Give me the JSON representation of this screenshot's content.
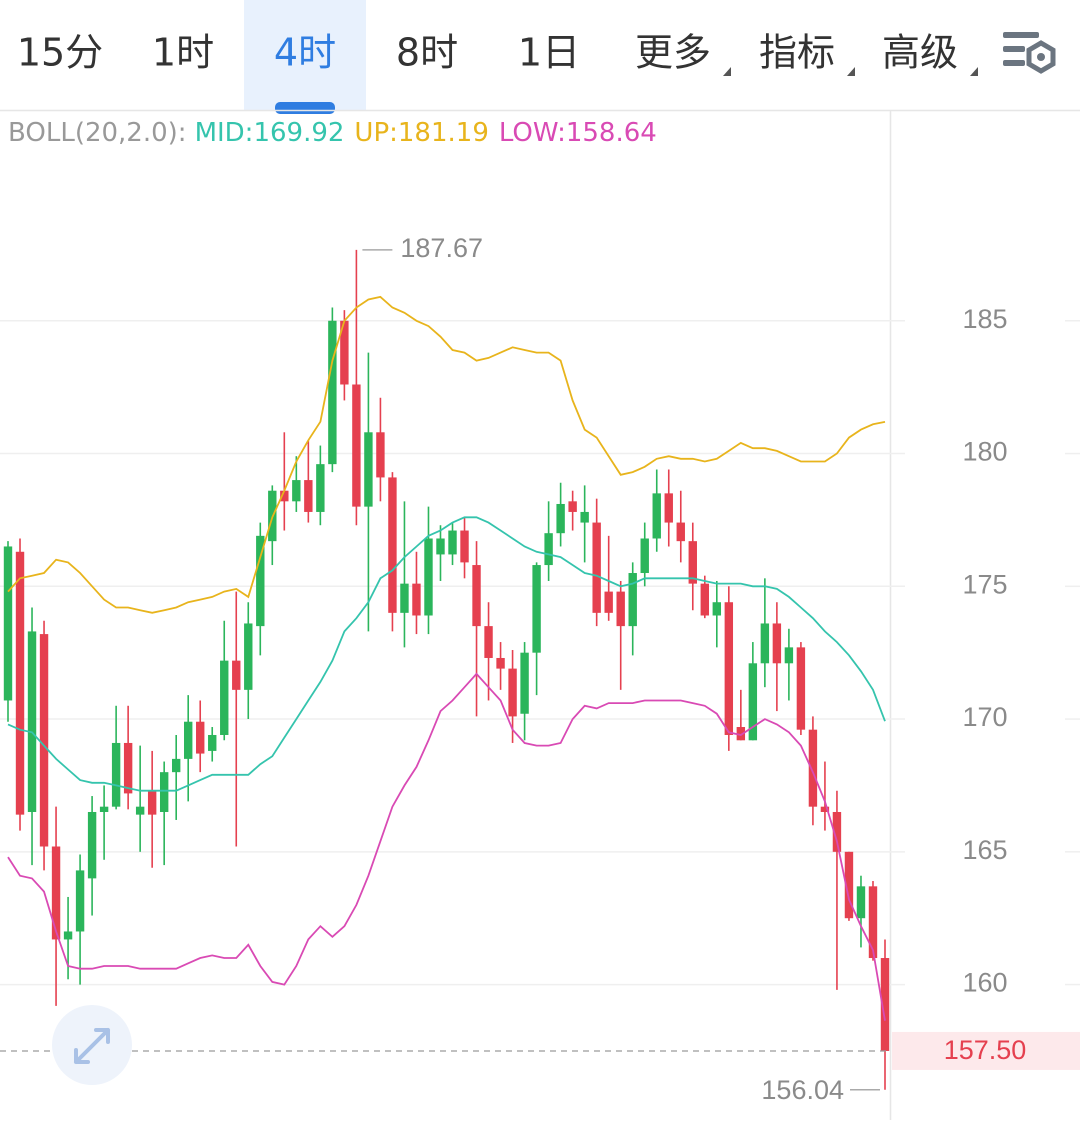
{
  "tabs": [
    "15分",
    "1时",
    "4时",
    "8时",
    "1日",
    "更多",
    "指标",
    "高级"
  ],
  "active_tab": 2,
  "dropdown_tabs": [
    5,
    6,
    7
  ],
  "chart_data": {
    "type": "candlestick",
    "indicator": "BOLL(20,2.0):",
    "up_color": "#2bb55b",
    "down_color": "#e5404f",
    "ylim": [
      154.9,
      192.9
    ],
    "yticks": [
      160,
      165,
      170,
      175,
      180,
      185
    ],
    "grid": true,
    "open": [
      170.7,
      176.3,
      166.5,
      173.2,
      165.2,
      161.7,
      162.0,
      164.0,
      166.5,
      166.7,
      169.1,
      166.4,
      167.3,
      166.5,
      168.0,
      168.5,
      169.9,
      168.8,
      169.4,
      172.2,
      171.1,
      173.5,
      176.7,
      178.6,
      178.2,
      179.0,
      177.8,
      179.6,
      185.0,
      182.6,
      178.0,
      180.8,
      179.1,
      174.0,
      175.1,
      173.9,
      176.2,
      176.2,
      177.1,
      175.8,
      173.5,
      172.3,
      171.9,
      170.2,
      172.5,
      175.8,
      177.0,
      178.2,
      177.4,
      177.4,
      174.8,
      174.8,
      173.5,
      175.5,
      176.8,
      178.5,
      177.4,
      176.7,
      175.1,
      173.9,
      174.4,
      169.7,
      169.2,
      172.1,
      173.6,
      172.1,
      172.7,
      169.6,
      166.7,
      166.5,
      165.0,
      162.5,
      163.7,
      161.0
    ],
    "high": [
      176.7,
      176.8,
      174.2,
      173.7,
      166.7,
      163.3,
      164.9,
      167.1,
      167.5,
      170.5,
      170.5,
      169.0,
      168.8,
      168.4,
      169.4,
      170.9,
      170.7,
      169.7,
      173.7,
      174.8,
      174.4,
      177.4,
      178.8,
      180.8,
      179.9,
      180.5,
      180.3,
      185.5,
      185.4,
      187.67,
      183.8,
      182.1,
      179.3,
      178.2,
      176.3,
      178.0,
      177.3,
      177.4,
      177.6,
      176.7,
      174.4,
      172.9,
      172.6,
      172.9,
      175.9,
      178.2,
      178.9,
      178.6,
      178.8,
      178.3,
      176.9,
      175.2,
      175.9,
      177.4,
      179.4,
      179.4,
      178.6,
      177.4,
      175.4,
      175.2,
      175.0,
      171.1,
      172.9,
      175.3,
      174.4,
      173.4,
      172.9,
      170.1,
      168.4,
      167.3,
      165.0,
      164.1,
      163.9,
      161.7
    ],
    "low": [
      169.9,
      165.8,
      164.5,
      164.3,
      159.2,
      160.2,
      160.0,
      162.6,
      164.7,
      166.6,
      166.6,
      165.0,
      164.4,
      164.5,
      166.2,
      166.9,
      168.0,
      168.4,
      169.2,
      165.2,
      170.0,
      172.4,
      175.8,
      177.1,
      177.8,
      177.4,
      177.3,
      179.3,
      182.0,
      177.3,
      173.3,
      178.2,
      173.3,
      172.7,
      173.2,
      173.2,
      175.2,
      175.8,
      175.3,
      170.1,
      170.7,
      171.1,
      169.1,
      169.2,
      170.9,
      175.2,
      176.5,
      177.1,
      175.9,
      173.5,
      173.7,
      171.1,
      172.4,
      175.0,
      176.3,
      176.5,
      175.9,
      174.1,
      173.8,
      172.7,
      168.8,
      169.2,
      169.2,
      171.2,
      170.3,
      170.7,
      169.4,
      166.0,
      165.8,
      159.8,
      162.4,
      161.4,
      160.9,
      156.04
    ],
    "close": [
      176.5,
      166.4,
      173.3,
      165.2,
      161.7,
      162.0,
      164.3,
      166.5,
      166.7,
      169.1,
      167.2,
      166.7,
      166.4,
      168.0,
      168.5,
      169.9,
      168.7,
      169.4,
      172.2,
      171.1,
      173.6,
      176.9,
      178.6,
      178.2,
      179.0,
      177.8,
      179.6,
      185.0,
      182.6,
      178.0,
      180.8,
      179.1,
      174.0,
      175.1,
      173.9,
      176.8,
      176.8,
      177.1,
      175.9,
      173.5,
      172.3,
      171.9,
      170.1,
      172.5,
      175.8,
      177.0,
      178.1,
      177.8,
      177.8,
      174.0,
      174.0,
      173.5,
      175.5,
      176.8,
      178.5,
      177.4,
      176.7,
      175.1,
      173.9,
      174.4,
      169.4,
      169.2,
      172.1,
      173.6,
      172.1,
      172.7,
      169.6,
      166.7,
      166.5,
      165.0,
      162.5,
      163.7,
      161.0,
      157.5
    ],
    "series": [
      {
        "name": "MID:169.92",
        "color": "#35c4ad",
        "values": [
          169.8,
          169.6,
          169.5,
          169.0,
          168.5,
          168.1,
          167.7,
          167.6,
          167.6,
          167.5,
          167.4,
          167.3,
          167.3,
          167.3,
          167.3,
          167.5,
          167.7,
          167.9,
          167.9,
          167.9,
          167.9,
          168.3,
          168.6,
          169.3,
          170.0,
          170.7,
          171.4,
          172.2,
          173.3,
          173.8,
          174.4,
          175.3,
          175.6,
          176.1,
          176.5,
          176.9,
          177.1,
          177.4,
          177.6,
          177.6,
          177.4,
          177.1,
          176.8,
          176.5,
          176.3,
          176.2,
          176.1,
          175.8,
          175.5,
          175.4,
          175.2,
          175.0,
          175.1,
          175.3,
          175.3,
          175.3,
          175.3,
          175.3,
          175.2,
          175.1,
          175.1,
          175.1,
          175.0,
          175.0,
          174.9,
          174.6,
          174.2,
          173.8,
          173.3,
          172.9,
          172.4,
          171.8,
          171.1,
          169.92
        ]
      },
      {
        "name": "UP:181.19",
        "color": "#e8b41c",
        "values": [
          174.8,
          175.3,
          175.4,
          175.5,
          176.0,
          175.9,
          175.5,
          175.0,
          174.5,
          174.2,
          174.2,
          174.1,
          174.0,
          174.1,
          174.2,
          174.4,
          174.5,
          174.6,
          174.8,
          174.9,
          174.6,
          176.1,
          177.6,
          178.6,
          179.7,
          180.5,
          181.2,
          183.5,
          185.0,
          185.5,
          185.8,
          185.9,
          185.5,
          185.3,
          185.0,
          184.8,
          184.4,
          183.9,
          183.8,
          183.5,
          183.6,
          183.8,
          184.0,
          183.9,
          183.8,
          183.8,
          183.5,
          182.0,
          180.9,
          180.6,
          179.9,
          179.2,
          179.3,
          179.5,
          179.8,
          179.9,
          179.8,
          179.8,
          179.7,
          179.8,
          180.1,
          180.4,
          180.2,
          180.2,
          180.1,
          179.9,
          179.7,
          179.7,
          179.7,
          180.0,
          180.6,
          180.9,
          181.1,
          181.19
        ]
      },
      {
        "name": "LOW:158.64",
        "color": "#d94ab4",
        "values": [
          164.8,
          164.1,
          164.0,
          163.5,
          162.0,
          160.7,
          160.6,
          160.6,
          160.7,
          160.7,
          160.7,
          160.6,
          160.6,
          160.6,
          160.6,
          160.8,
          161.0,
          161.1,
          161.0,
          161.0,
          161.5,
          160.7,
          160.1,
          160.0,
          160.7,
          161.7,
          162.2,
          161.8,
          162.2,
          163.0,
          164.1,
          165.4,
          166.7,
          167.5,
          168.2,
          169.2,
          170.3,
          170.7,
          171.2,
          171.7,
          171.2,
          170.7,
          169.6,
          169.1,
          169.0,
          169.0,
          169.1,
          170.0,
          170.5,
          170.4,
          170.6,
          170.6,
          170.6,
          170.7,
          170.7,
          170.7,
          170.7,
          170.6,
          170.5,
          170.2,
          169.5,
          169.4,
          169.7,
          170.0,
          169.8,
          169.5,
          169.0,
          168.0,
          166.9,
          165.4,
          163.2,
          162.2,
          161.3,
          158.64
        ]
      }
    ],
    "high_marker": 187.67,
    "low_marker": 156.04,
    "last_price": {
      "value": 157.5,
      "label": "157.50"
    }
  }
}
